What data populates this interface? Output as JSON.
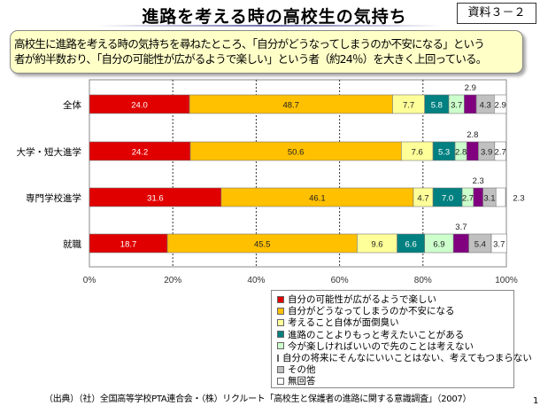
{
  "header": {
    "title": "進路を考える時の高校生の気持ち",
    "badge": "資料３－２"
  },
  "callout": {
    "line1": "高校生に進路を考える時の気持ちを尋ねたところ、「自分がどうなってしまうのか不安になる」という",
    "line2": "者が約半数おり、「自分の可能性が広がるようで楽しい」という者（約24％）を大きく上回っている。"
  },
  "chart_data": {
    "type": "bar",
    "orientation": "horizontal",
    "stacked": true,
    "categories": [
      "全体",
      "大学・短大進学",
      "専門学校進学",
      "就職"
    ],
    "xlim": [
      0,
      100
    ],
    "xticks": [
      "0%",
      "20%",
      "40%",
      "60%",
      "80%",
      "100%"
    ],
    "series": [
      {
        "name": "自分の可能性が広がるようで楽しい",
        "color": "#e00000",
        "values": [
          24.0,
          24.2,
          31.6,
          18.7
        ]
      },
      {
        "name": "自分がどうなってしまうのか不安になる",
        "color": "#ffc000",
        "values": [
          48.7,
          50.6,
          46.1,
          45.5
        ]
      },
      {
        "name": "考えること自体が面倒臭い",
        "color": "#ffff99",
        "values": [
          7.7,
          7.6,
          4.7,
          9.6
        ]
      },
      {
        "name": "進路のことよりもっと考えたいことがある",
        "color": "#008080",
        "values": [
          5.8,
          5.3,
          7.0,
          6.6
        ]
      },
      {
        "name": "今が楽しければいいので先のことは考えない",
        "color": "#ccffcc",
        "values": [
          3.7,
          2.8,
          2.7,
          6.9
        ]
      },
      {
        "name": "自分の将来にそんなにいいことはない、考えてもつまらない",
        "color": "#800080",
        "values": [
          2.9,
          2.8,
          2.3,
          3.7
        ]
      },
      {
        "name": "その他",
        "color": "#c0c0c0",
        "values": [
          4.3,
          3.9,
          3.1,
          5.4
        ]
      },
      {
        "name": "無回答",
        "color": "#ffffff",
        "values": [
          2.9,
          2.7,
          2.3,
          3.7
        ]
      }
    ],
    "legend_position": "bottom-right",
    "grid": "dotted vertical"
  },
  "footer": {
    "source": "（出典）（社）全国高等学校PTA連合会・（株）リクルート「高校生と保護者の進路に関する意識調査」（2007）",
    "page": "1"
  }
}
